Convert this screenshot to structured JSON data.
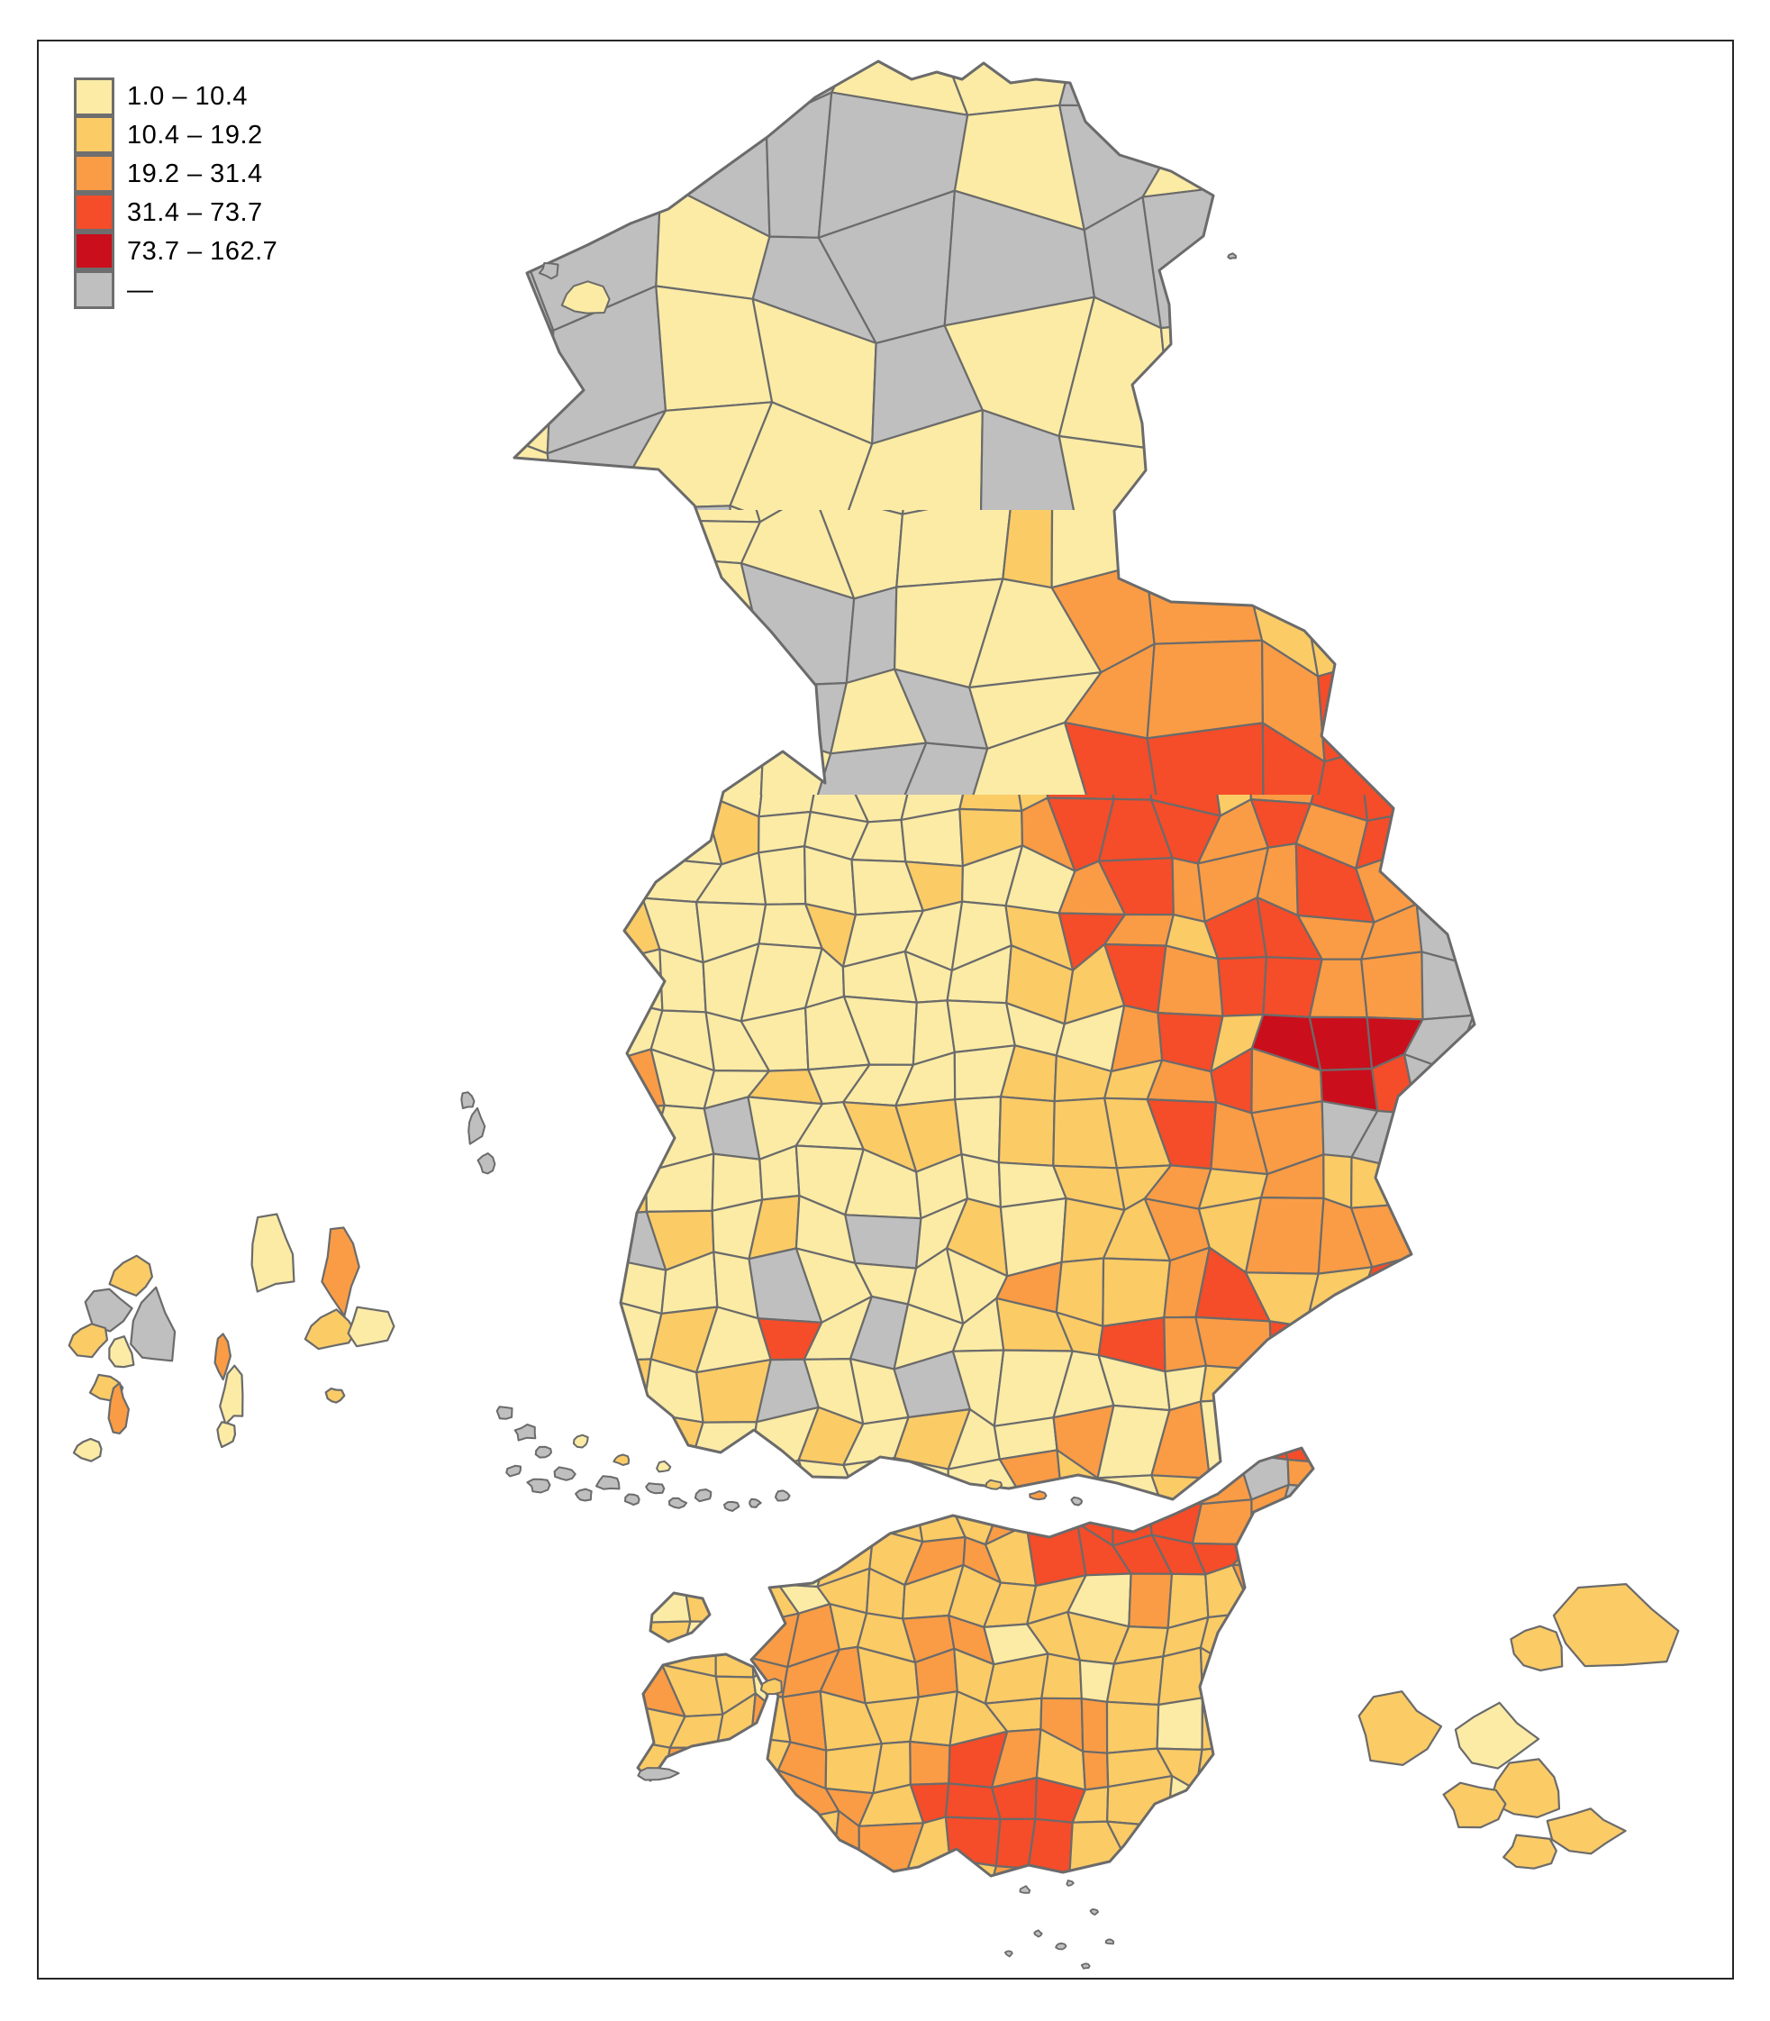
{
  "figure": {
    "type": "choropleth-map",
    "description": "Municipality-level classed choropleth map of Finland and Estonia with Aland islands and archipelago"
  },
  "legend": {
    "items": [
      {
        "label": "1.0 – 10.4",
        "class": "c1"
      },
      {
        "label": "10.4 – 19.2",
        "class": "c2"
      },
      {
        "label": "19.2 – 31.4",
        "class": "c3"
      },
      {
        "label": "31.4 – 73.7",
        "class": "c4"
      },
      {
        "label": "73.7 – 162.7",
        "class": "c5"
      },
      {
        "label": "—",
        "class": "cg"
      }
    ]
  },
  "colors": {
    "c1": "#FBEBA5",
    "c2": "#FBCB66",
    "c3": "#FA9C45",
    "c4": "#F54C29",
    "c5": "#CB0E1B",
    "cg": "#BFBFBF",
    "border": "#6B6B6B",
    "coast": "#6B6B6B",
    "frame": "#262626",
    "background": "#FFFFFF",
    "text": "#000000"
  }
}
